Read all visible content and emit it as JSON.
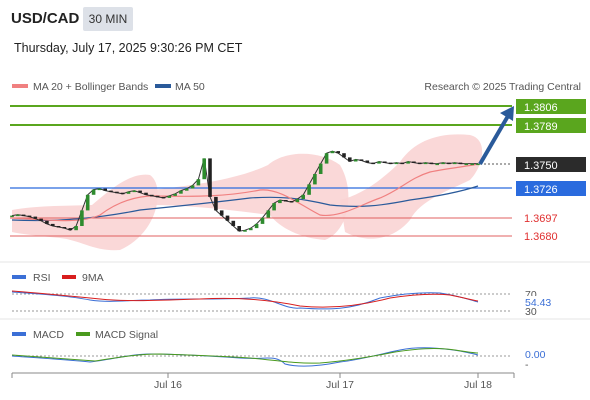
{
  "header": {
    "symbol": "USD/CAD",
    "timeframe": "30 MIN",
    "datetime": "Thursday, July 17, 2025 9:30:26 PM CET"
  },
  "main_legend": {
    "ma20": "MA 20 + Bollinger Bands",
    "ma50": "MA 50",
    "credit": "Research © 2025 Trading Central"
  },
  "colors": {
    "ma20": "#f08080",
    "ma50": "#2a5a9a",
    "resistance": "#5aa61e",
    "pivot": "#2a6bde",
    "support": "#e06060",
    "bands": "#f9d2d2",
    "arrow": "#2a5a9a"
  },
  "levels": {
    "resistance2": "1.3806",
    "resistance1": "1.3789",
    "current": "1.3750",
    "pivot": "1.3726",
    "support1": "1.3697",
    "support2": "1.3680"
  },
  "rsi_panel": {
    "label": "RSI",
    "ma_label": "9MA",
    "value": "54.43",
    "level_top": "70",
    "level_bottom": "30"
  },
  "macd_panel": {
    "label": "MACD",
    "signal_label": "MACD Signal",
    "value": "0.00",
    "level_bottom": "-"
  },
  "x_axis": {
    "labels": [
      "Jul 16",
      "Jul 17",
      "Jul 18"
    ]
  },
  "chart_data": {
    "type": "line",
    "title": "USD/CAD",
    "ylim": [
      1.3665,
      1.3815
    ],
    "x": [
      0,
      2,
      4,
      6,
      8,
      10,
      12,
      14,
      16,
      18,
      20,
      22,
      24,
      26,
      28,
      30,
      32,
      34,
      36,
      38,
      40,
      42,
      44,
      46,
      48,
      50,
      52,
      54,
      56,
      58,
      60,
      62,
      64,
      66,
      68,
      70,
      72,
      74,
      76,
      78,
      80,
      82,
      84,
      86,
      88,
      90,
      92,
      94,
      96,
      98,
      100,
      102,
      104,
      106,
      108,
      110,
      112,
      114,
      116,
      118,
      120,
      122,
      124,
      126,
      128,
      130,
      132,
      134,
      136,
      138,
      140,
      142,
      144,
      146,
      148,
      150,
      152,
      154,
      156,
      158,
      160
    ],
    "series": [
      {
        "name": "price",
        "values": [
          1.37,
          1.3701,
          1.37,
          1.3699,
          1.3697,
          1.3695,
          1.3692,
          1.369,
          1.3689,
          1.3688,
          1.3686,
          1.369,
          1.3705,
          1.372,
          1.3725,
          1.3726,
          1.3724,
          1.3723,
          1.3722,
          1.3721,
          1.3723,
          1.3724,
          1.3722,
          1.372,
          1.3719,
          1.3718,
          1.3717,
          1.3719,
          1.3721,
          1.3724,
          1.3726,
          1.3729,
          1.3735,
          1.3755,
          1.3718,
          1.3705,
          1.37,
          1.3695,
          1.369,
          1.3685,
          1.3686,
          1.3688,
          1.3692,
          1.3698,
          1.3705,
          1.3712,
          1.3715,
          1.3714,
          1.3713,
          1.3716,
          1.372,
          1.373,
          1.374,
          1.375,
          1.376,
          1.3762,
          1.376,
          1.3756,
          1.3752,
          1.3754,
          1.3753,
          1.3751,
          1.375,
          1.3752,
          1.3751,
          1.375,
          1.3751,
          1.375,
          1.3752,
          1.3751,
          1.375,
          1.3751,
          1.375,
          1.375,
          1.3751,
          1.375,
          1.3751,
          1.375,
          1.375,
          1.375,
          1.375
        ]
      }
    ]
  }
}
